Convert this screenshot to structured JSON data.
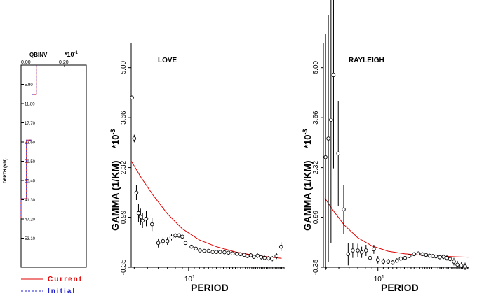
{
  "colors": {
    "current": "#e00000",
    "initial": "#2020d0",
    "axis": "#000000"
  },
  "legend": {
    "current_label": "Current",
    "initial_label": "Initial"
  },
  "chart_data": [
    {
      "type": "line",
      "title": "QBINV",
      "multiplier": "*10",
      "multiplier_exp": "-1",
      "xlabel": "",
      "ylabel": "DEPTH (KM)",
      "xlim": [
        0.0,
        0.3
      ],
      "ylim": [
        0,
        62
      ],
      "x_ticks": [
        0.0,
        0.2
      ],
      "x_tick_labels": [
        "0.00",
        "0.20"
      ],
      "y_ticks": [
        5.9,
        11.8,
        17.7,
        23.6,
        29.5,
        35.4,
        41.3,
        47.2,
        53.1
      ],
      "y_tick_labels": [
        "5.90",
        "11.80",
        "17.70",
        "23.60",
        "29.50",
        "35.40",
        "41.30",
        "47.20",
        "53.10"
      ],
      "series": [
        {
          "name": "Current",
          "style": "solid",
          "depth": [
            0,
            2,
            2,
            9,
            9,
            23,
            23,
            41,
            41,
            47
          ],
          "value": [
            0.07,
            0.07,
            0.07,
            0.07,
            0.05,
            0.05,
            0.025,
            0.025,
            0.0,
            0.0
          ]
        },
        {
          "name": "Initial",
          "style": "dashed",
          "depth": [
            0,
            2,
            2,
            9,
            9,
            23,
            23,
            41,
            41,
            47
          ],
          "value": [
            0.07,
            0.07,
            0.07,
            0.07,
            0.05,
            0.05,
            0.025,
            0.025,
            0.0,
            0.0
          ]
        }
      ]
    },
    {
      "type": "scatter",
      "title": "LOVE",
      "xlabel": "PERIOD",
      "ylabel": "GAMMA (1/KM)",
      "multiplier": "*10",
      "multiplier_exp": "-3",
      "x_scale": "log",
      "xlim": [
        3.8,
        50
      ],
      "ylim": [
        -0.35,
        5.65
      ],
      "x_tick_labels": [
        {
          "base": "10",
          "exp": "1"
        }
      ],
      "y_ticks": [
        -0.35,
        0.99,
        2.32,
        3.66,
        5.0
      ],
      "y_tick_labels": [
        "-0.35",
        "0.99",
        "2.32",
        "3.66",
        "5.00"
      ],
      "observed": [
        {
          "period": 3.85,
          "gamma": 4.2,
          "err": 0.05
        },
        {
          "period": 4.0,
          "gamma": 3.1,
          "err": 0.1
        },
        {
          "period": 4.15,
          "gamma": 1.65,
          "err": 0.2
        },
        {
          "period": 4.3,
          "gamma": 1.1,
          "err": 0.25
        },
        {
          "period": 4.45,
          "gamma": 1.0,
          "err": 0.22
        },
        {
          "period": 4.6,
          "gamma": 0.9,
          "err": 0.2
        },
        {
          "period": 4.9,
          "gamma": 0.95,
          "err": 0.2
        },
        {
          "period": 5.4,
          "gamma": 0.8,
          "err": 0.18
        },
        {
          "period": 6.0,
          "gamma": 0.3,
          "err": 0.12
        },
        {
          "period": 6.5,
          "gamma": 0.35,
          "err": 0.1
        },
        {
          "period": 7.0,
          "gamma": 0.35,
          "err": 0.1
        },
        {
          "period": 7.5,
          "gamma": 0.45,
          "err": 0.08
        },
        {
          "period": 8.0,
          "gamma": 0.5,
          "err": 0.06
        },
        {
          "period": 8.5,
          "gamma": 0.5,
          "err": 0.06
        },
        {
          "period": 9.0,
          "gamma": 0.47,
          "err": 0.05
        },
        {
          "period": 9.5,
          "gamma": 0.3,
          "err": 0.05
        },
        {
          "period": 10.5,
          "gamma": 0.2,
          "err": 0.04
        },
        {
          "period": 11.3,
          "gamma": 0.15,
          "err": 0.04
        },
        {
          "period": 12.1,
          "gamma": 0.1,
          "err": 0.04
        },
        {
          "period": 13.0,
          "gamma": 0.09,
          "err": 0.04
        },
        {
          "period": 14.0,
          "gamma": 0.09,
          "err": 0.04
        },
        {
          "period": 15.0,
          "gamma": 0.06,
          "err": 0.04
        },
        {
          "period": 16.0,
          "gamma": 0.06,
          "err": 0.04
        },
        {
          "period": 17.0,
          "gamma": 0.06,
          "err": 0.04
        },
        {
          "period": 18.3,
          "gamma": 0.05,
          "err": 0.04
        },
        {
          "period": 19.6,
          "gamma": 0.04,
          "err": 0.04
        },
        {
          "period": 21.0,
          "gamma": 0.02,
          "err": 0.04
        },
        {
          "period": 22.5,
          "gamma": 0.01,
          "err": 0.04
        },
        {
          "period": 24.0,
          "gamma": 0.0,
          "err": 0.04
        },
        {
          "period": 25.5,
          "gamma": -0.02,
          "err": 0.04
        },
        {
          "period": 27.0,
          "gamma": -0.05,
          "err": 0.05
        },
        {
          "period": 28.5,
          "gamma": -0.03,
          "err": 0.05
        },
        {
          "period": 30.0,
          "gamma": -0.07,
          "err": 0.05
        },
        {
          "period": 32.0,
          "gamma": -0.04,
          "err": 0.06
        },
        {
          "period": 34.0,
          "gamma": -0.08,
          "err": 0.06
        },
        {
          "period": 36.0,
          "gamma": -0.1,
          "err": 0.06
        },
        {
          "period": 38.5,
          "gamma": -0.11,
          "err": 0.06
        },
        {
          "period": 41.0,
          "gamma": -0.12,
          "err": 0.07
        },
        {
          "period": 44.0,
          "gamma": -0.05,
          "err": 0.08
        },
        {
          "period": 47.5,
          "gamma": 0.2,
          "err": 0.12
        }
      ],
      "predicted": {
        "period": [
          3.8,
          4.5,
          5.5,
          7,
          9,
          12,
          16,
          22,
          30,
          40,
          48
        ],
        "gamma": [
          2.5,
          2.05,
          1.58,
          1.08,
          0.68,
          0.38,
          0.2,
          0.06,
          -0.03,
          -0.08,
          -0.11
        ]
      }
    },
    {
      "type": "scatter",
      "title": "RAYLEIGH",
      "xlabel": "PERIOD",
      "ylabel": "GAMMA (1/KM)",
      "multiplier": "*10",
      "multiplier_exp": "-3",
      "x_scale": "log",
      "xlim": [
        3.8,
        50
      ],
      "ylim": [
        -0.35,
        5.65
      ],
      "x_tick_labels": [
        {
          "base": "10",
          "exp": "1"
        }
      ],
      "y_ticks": [
        -0.35,
        0.99,
        2.32,
        3.66,
        5.0
      ],
      "y_tick_labels": [
        "-0.35",
        "0.99",
        "2.32",
        "3.66",
        "5.00"
      ],
      "observed": [
        {
          "period": 3.95,
          "gamma": 2.6,
          "err": 3.3
        },
        {
          "period": 4.15,
          "gamma": 3.1,
          "err": 3.3
        },
        {
          "period": 4.35,
          "gamma": 3.6,
          "err": 3.3
        },
        {
          "period": 4.55,
          "gamma": 4.8,
          "err": 2.5
        },
        {
          "period": 4.95,
          "gamma": 2.7,
          "err": 1.4
        },
        {
          "period": 5.45,
          "gamma": 1.2,
          "err": 0.65
        },
        {
          "period": 5.9,
          "gamma": 0.0,
          "err": 0.3
        },
        {
          "period": 6.4,
          "gamma": 0.1,
          "err": 0.2
        },
        {
          "period": 7.0,
          "gamma": 0.1,
          "err": 0.18
        },
        {
          "period": 7.5,
          "gamma": 0.05,
          "err": 0.15
        },
        {
          "period": 8.1,
          "gamma": 0.1,
          "err": 0.15
        },
        {
          "period": 8.7,
          "gamma": -0.1,
          "err": 0.15
        },
        {
          "period": 9.3,
          "gamma": 0.13,
          "err": 0.12
        },
        {
          "period": 10.0,
          "gamma": -0.15,
          "err": 0.1
        },
        {
          "period": 11.0,
          "gamma": -0.2,
          "err": 0.08
        },
        {
          "period": 12.0,
          "gamma": -0.2,
          "err": 0.07
        },
        {
          "period": 13.0,
          "gamma": -0.22,
          "err": 0.07
        },
        {
          "period": 14.0,
          "gamma": -0.17,
          "err": 0.06
        },
        {
          "period": 15.0,
          "gamma": -0.12,
          "err": 0.06
        },
        {
          "period": 16.2,
          "gamma": -0.1,
          "err": 0.06
        },
        {
          "period": 17.5,
          "gamma": -0.05,
          "err": 0.05
        },
        {
          "period": 19.0,
          "gamma": 0.0,
          "err": 0.05
        },
        {
          "period": 20.5,
          "gamma": 0.02,
          "err": 0.05
        },
        {
          "period": 22.0,
          "gamma": 0.0,
          "err": 0.05
        },
        {
          "period": 23.5,
          "gamma": -0.02,
          "err": 0.05
        },
        {
          "period": 25.0,
          "gamma": -0.04,
          "err": 0.05
        },
        {
          "period": 26.5,
          "gamma": -0.05,
          "err": 0.05
        },
        {
          "period": 28.0,
          "gamma": -0.06,
          "err": 0.05
        },
        {
          "period": 30.0,
          "gamma": -0.08,
          "err": 0.06
        },
        {
          "period": 32.0,
          "gamma": -0.07,
          "err": 0.06
        },
        {
          "period": 34.0,
          "gamma": -0.1,
          "err": 0.07
        },
        {
          "period": 36.0,
          "gamma": -0.13,
          "err": 0.08
        },
        {
          "period": 38.5,
          "gamma": -0.2,
          "err": 0.1
        },
        {
          "period": 41.0,
          "gamma": -0.28,
          "err": 0.1
        },
        {
          "period": 44.0,
          "gamma": -0.3,
          "err": 0.1
        },
        {
          "period": 47.0,
          "gamma": -0.33,
          "err": 0.1
        }
      ],
      "predicted": {
        "period": [
          3.9,
          4.5,
          5.5,
          7,
          9,
          12,
          16,
          22,
          30,
          40,
          50
        ],
        "gamma": [
          1.5,
          1.18,
          0.78,
          0.44,
          0.22,
          0.08,
          0.01,
          -0.03,
          -0.05,
          -0.07,
          -0.08
        ]
      }
    }
  ]
}
